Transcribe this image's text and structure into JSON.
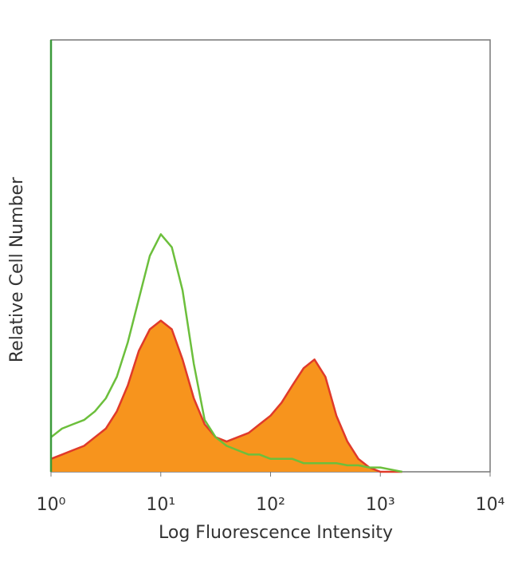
{
  "chart_data": {
    "type": "histogram-overlay",
    "xlabel": "Log Fluorescence Intensity",
    "ylabel": "Relative Cell Number",
    "xscale": "log",
    "xlim": [
      1,
      10000
    ],
    "ylim": [
      0,
      100
    ],
    "xticks": [
      {
        "value": 1,
        "label": "10⁰"
      },
      {
        "value": 10,
        "label": "10¹"
      },
      {
        "value": 100,
        "label": "10²"
      },
      {
        "value": 1000,
        "label": "10³"
      },
      {
        "value": 10000,
        "label": "10⁴"
      }
    ],
    "x": [
      1,
      1.26,
      1.58,
      2,
      2.51,
      3.16,
      3.98,
      5.01,
      6.31,
      7.94,
      10,
      12.6,
      15.8,
      20,
      25.1,
      31.6,
      39.8,
      50.1,
      63.1,
      79.4,
      100,
      126,
      158,
      200,
      251,
      316,
      398,
      501,
      631,
      794,
      1000,
      1260,
      1580
    ],
    "series": [
      {
        "color": "#e03a2a",
        "fill": "#f7941d",
        "values": [
          3,
          4,
          5,
          6,
          8,
          10,
          14,
          20,
          28,
          33,
          35,
          33,
          26,
          17,
          11,
          8,
          7,
          8,
          9,
          11,
          13,
          16,
          20,
          24,
          26,
          22,
          13,
          7,
          3,
          1,
          0,
          0,
          0
        ]
      },
      {
        "color": "#6cbf3c",
        "values": [
          8,
          10,
          11,
          12,
          14,
          17,
          22,
          30,
          40,
          50,
          55,
          52,
          42,
          25,
          12,
          8,
          6,
          5,
          4,
          4,
          3,
          3,
          3,
          2,
          2,
          2,
          2,
          1.5,
          1.5,
          1,
          1,
          0.5,
          0
        ]
      }
    ]
  }
}
